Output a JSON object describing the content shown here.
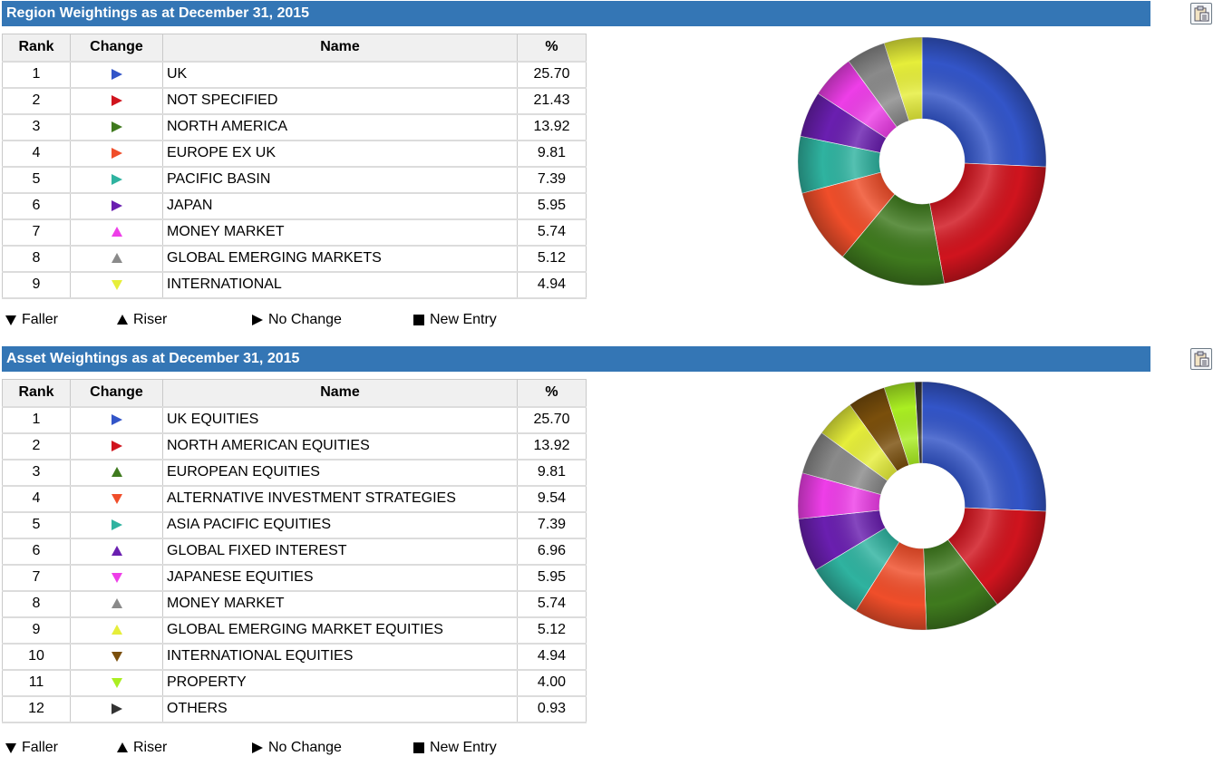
{
  "legend": {
    "faller": "Faller",
    "riser": "Riser",
    "no_change": "No Change",
    "new_entry": "New Entry"
  },
  "columns": {
    "rank": "Rank",
    "change": "Change",
    "name": "Name",
    "pct": "%"
  },
  "icons": {
    "copy": "clipboard-icon",
    "up": "triangle-up-icon",
    "down": "triangle-down-icon",
    "right": "triangle-right-icon",
    "square": "square-icon"
  },
  "chart_data": [
    {
      "type": "pie",
      "title": "Region Weightings as at December 31, 2015",
      "rows": [
        {
          "rank": "1",
          "change": "right",
          "name": "UK",
          "pct": "25.70",
          "color": "#3355c8"
        },
        {
          "rank": "2",
          "change": "right",
          "name": "NOT SPECIFIED",
          "pct": "21.43",
          "color": "#d0141e"
        },
        {
          "rank": "3",
          "change": "right",
          "name": "NORTH AMERICA",
          "pct": "13.92",
          "color": "#3f7a1e"
        },
        {
          "rank": "4",
          "change": "right",
          "name": "EUROPE EX UK",
          "pct": "9.81",
          "color": "#f04e2a"
        },
        {
          "rank": "5",
          "change": "right",
          "name": "PACIFIC BASIN",
          "pct": "7.39",
          "color": "#2fb3a0"
        },
        {
          "rank": "6",
          "change": "right",
          "name": "JAPAN",
          "pct": "5.95",
          "color": "#6a1fb0"
        },
        {
          "rank": "7",
          "change": "up",
          "name": "MONEY MARKET",
          "pct": "5.74",
          "color": "#ee3ee8"
        },
        {
          "rank": "8",
          "change": "up",
          "name": "GLOBAL EMERGING MARKETS",
          "pct": "5.12",
          "color": "#8a8a8a"
        },
        {
          "rank": "9",
          "change": "down",
          "name": "INTERNATIONAL",
          "pct": "4.94",
          "color": "#e6ee3a"
        }
      ]
    },
    {
      "type": "pie",
      "title": "Asset Weightings as at December 31, 2015",
      "rows": [
        {
          "rank": "1",
          "change": "right",
          "name": "UK EQUITIES",
          "pct": "25.70",
          "color": "#3355c8"
        },
        {
          "rank": "2",
          "change": "right",
          "name": "NORTH AMERICAN EQUITIES",
          "pct": "13.92",
          "color": "#d0141e"
        },
        {
          "rank": "3",
          "change": "up",
          "name": "EUROPEAN EQUITIES",
          "pct": "9.81",
          "color": "#3f7a1e"
        },
        {
          "rank": "4",
          "change": "down",
          "name": "ALTERNATIVE INVESTMENT STRATEGIES",
          "pct": "9.54",
          "color": "#f04e2a"
        },
        {
          "rank": "5",
          "change": "right",
          "name": "ASIA PACIFIC EQUITIES",
          "pct": "7.39",
          "color": "#2fb3a0"
        },
        {
          "rank": "6",
          "change": "up",
          "name": "GLOBAL FIXED INTEREST",
          "pct": "6.96",
          "color": "#6a1fb0"
        },
        {
          "rank": "7",
          "change": "down",
          "name": "JAPANESE EQUITIES",
          "pct": "5.95",
          "color": "#ee3ee8"
        },
        {
          "rank": "8",
          "change": "up",
          "name": "MONEY MARKET",
          "pct": "5.74",
          "color": "#8a8a8a"
        },
        {
          "rank": "9",
          "change": "up",
          "name": "GLOBAL EMERGING MARKET EQUITIES",
          "pct": "5.12",
          "color": "#e6ee3a"
        },
        {
          "rank": "10",
          "change": "down",
          "name": "INTERNATIONAL EQUITIES",
          "pct": "4.94",
          "color": "#7a4f0c"
        },
        {
          "rank": "11",
          "change": "down",
          "name": "PROPERTY",
          "pct": "4.00",
          "color": "#aaee22"
        },
        {
          "rank": "12",
          "change": "right",
          "name": "OTHERS",
          "pct": "0.93",
          "color": "#333333"
        }
      ]
    }
  ]
}
